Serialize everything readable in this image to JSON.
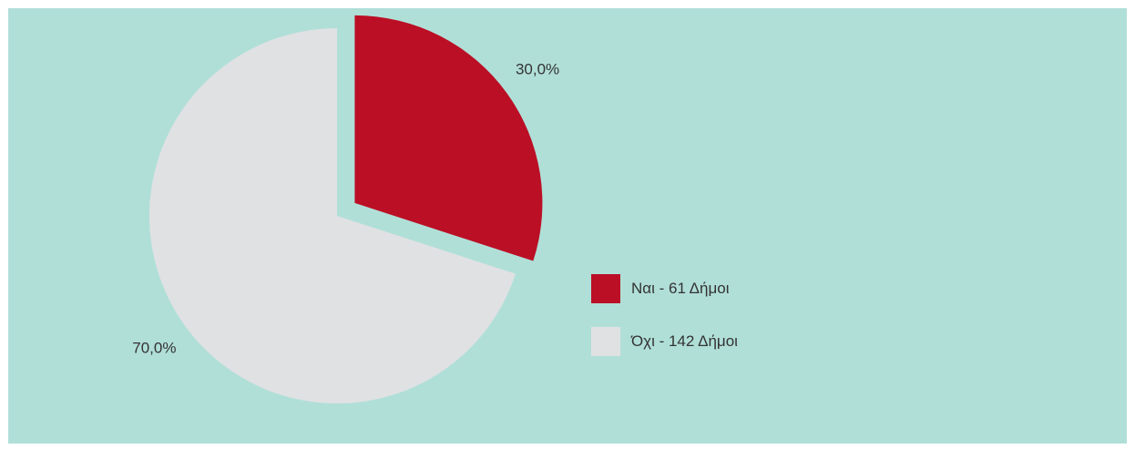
{
  "background_color": "#b0dfd8",
  "chart_data": {
    "type": "pie",
    "title": "",
    "slices": [
      {
        "label": "Ναι - 61 Δήμοι",
        "value": 30.0,
        "display": "30,0%",
        "color": "#bb0f25",
        "exploded": true
      },
      {
        "label": "Όχι - 142 Δήμοι",
        "value": 70.0,
        "display": "70,0%",
        "color": "#e0e1e3",
        "exploded": false
      }
    ],
    "start_angle_deg": 0,
    "direction": "clockwise",
    "legend_position": "right"
  }
}
